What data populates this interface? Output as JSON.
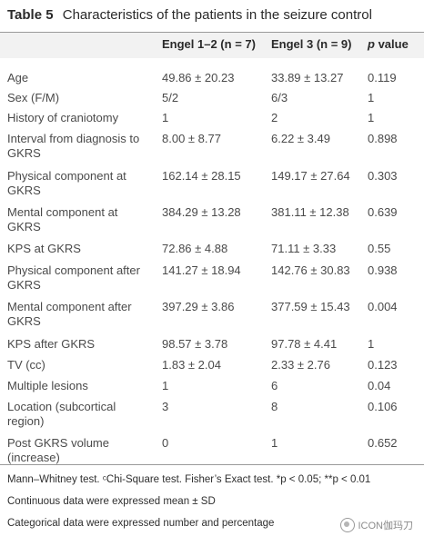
{
  "table": {
    "label": "Table 5",
    "caption": "Characteristics of the patients in the seizure control",
    "headers": {
      "col1": "Engel 1–2 (n = 7)",
      "col2": "Engel 3 (n = 9)",
      "col3_italic": "p",
      "col3_rest": " value"
    },
    "rows": [
      {
        "label": "Age",
        "c1": "49.86 ± 20.23",
        "c2": "33.89 ± 13.27",
        "c3": "0.119"
      },
      {
        "label": "Sex (F/M)",
        "c1": "5/2",
        "c2": "6/3",
        "c3": "1"
      },
      {
        "label": "History of craniotomy",
        "c1": "1",
        "c2": "2",
        "c3": "1"
      },
      {
        "label": "Interval from diagnosis to GKRS",
        "c1": "8.00 ± 8.77",
        "c2": "6.22 ± 3.49",
        "c3": "0.898"
      },
      {
        "label": "Physical component at GKRS",
        "c1": "162.14 ± 28.15",
        "c2": "149.17 ± 27.64",
        "c3": "0.303"
      },
      {
        "label": "Mental component at GKRS",
        "c1": "384.29 ± 13.28",
        "c2": "381.11 ± 12.38",
        "c3": "0.639"
      },
      {
        "label": "KPS at GKRS",
        "c1": "72.86 ± 4.88",
        "c2": "71.11 ± 3.33",
        "c3": "0.55"
      },
      {
        "label": "Physical component after GKRS",
        "c1": "141.27 ± 18.94",
        "c2": "142.76 ± 30.83",
        "c3": "0.938"
      },
      {
        "label": "Mental component after GKRS",
        "c1": "397.29 ± 3.86",
        "c2": "377.59 ± 15.43",
        "c3": "0.004"
      },
      {
        "label": "KPS after GKRS",
        "c1": "98.57 ± 3.78",
        "c2": "97.78 ± 4.41",
        "c3": "1"
      },
      {
        "label": "TV (cc)",
        "c1": "1.83 ± 2.04",
        "c2": "2.33 ± 2.76",
        "c3": "0.123"
      },
      {
        "label": "Multiple lesions",
        "c1": "1",
        "c2": "6",
        "c3": "0.04"
      },
      {
        "label": "Location (subcortical region)",
        "c1": "3",
        "c2": "8",
        "c3": "0.106"
      },
      {
        "label": "Post GKRS volume (increase)",
        "c1": "0",
        "c2": "1",
        "c3": "0.652"
      }
    ],
    "notes": [
      "Mann–Whitney test. ᶜChi-Square test. Fisher’s Exact test. *p < 0.05; **p < 0.01",
      "Continuous data were expressed mean ± SD",
      "Categorical data were expressed number and percentage"
    ]
  },
  "watermark": "ICON伽玛刀"
}
